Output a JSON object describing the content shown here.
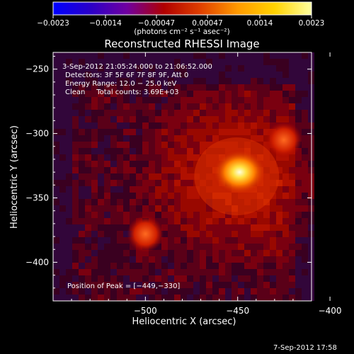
{
  "chart_data": {
    "type": "heatmap",
    "title": "Reconstructed RHESSI Image",
    "xlabel": "Heliocentric X (arcsec)",
    "ylabel": "Heliocentric Y (arcsec)",
    "xlim": [
      -550,
      -410
    ],
    "ylim": [
      -430,
      -237
    ],
    "x_ticks": [
      -500,
      -450,
      -400
    ],
    "x_tick_labels": [
      "−500",
      "−450",
      "−400"
    ],
    "y_ticks": [
      -250,
      -300,
      -350,
      -400
    ],
    "y_tick_labels": [
      "−250",
      "−300",
      "−350",
      "−400"
    ],
    "colorbar": {
      "label": "(photons cm⁻² s⁻¹ asec⁻²)",
      "range": [
        -0.0023,
        0.0023
      ],
      "tick_labels": [
        "−0.0023",
        "−0.0014",
        "−0.00047",
        "0.00047",
        "0.0014",
        "0.0023"
      ],
      "colormap": [
        "#0000ff",
        "#2a00c8",
        "#7000a0",
        "#b00000",
        "#e04000",
        "#ff9a00",
        "#ffd200",
        "#ffffa0"
      ]
    },
    "peak": {
      "x": -449,
      "y": -330,
      "value": 0.0023
    },
    "secondary_sources": [
      {
        "x": -500,
        "y": -378,
        "value": 0.001
      },
      {
        "x": -425,
        "y": -305,
        "value": 0.0007
      }
    ],
    "annotations": [
      "3-Sep-2012 21:05:24.000 to 21:06:52.000",
      "Detectors: 3F 5F 6F 7F 8F 9F, Att 0",
      "Energy Range: 12.0 − 25.0 keV",
      "Clean     Total counts: 3.69E+03"
    ],
    "peak_label": "Position of Peak = [−449,−330]",
    "timestamp": "7-Sep-2012 17:58",
    "grid": false
  }
}
